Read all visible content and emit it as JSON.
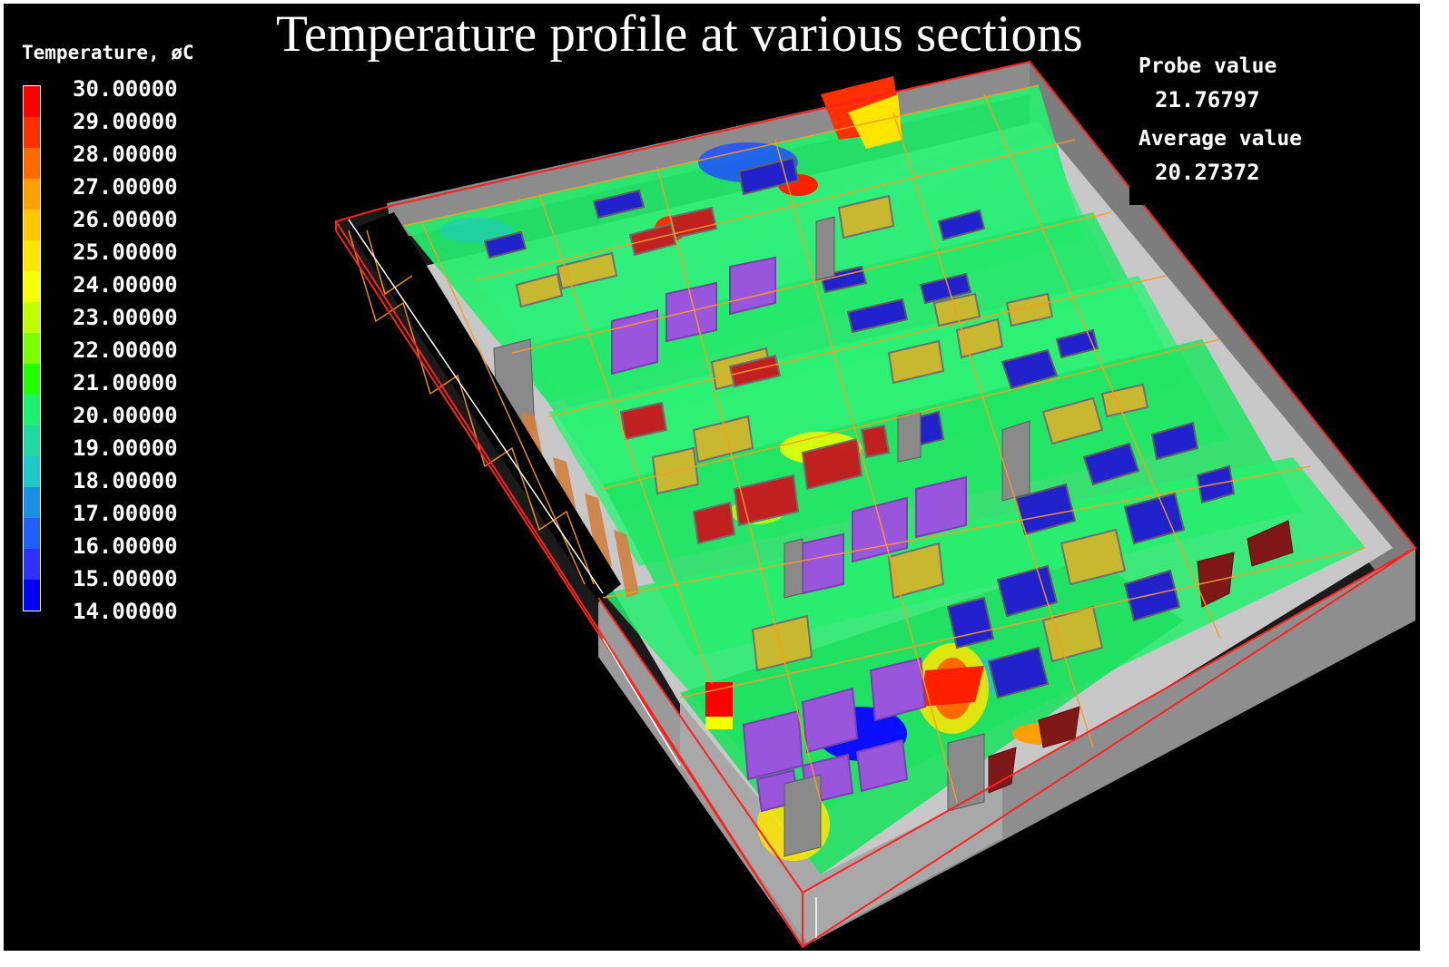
{
  "title": "Temperature profile at various sections",
  "legend": {
    "title": "Temperature, øC",
    "ticks": [
      "30.00000",
      "29.00000",
      "28.00000",
      "27.00000",
      "26.00000",
      "25.00000",
      "24.00000",
      "23.00000",
      "22.00000",
      "21.00000",
      "20.00000",
      "19.00000",
      "18.00000",
      "17.00000",
      "16.00000",
      "15.00000",
      "14.00000"
    ],
    "colors": [
      "#ff0000",
      "#ff3000",
      "#ff6a00",
      "#ffa000",
      "#ffc800",
      "#ffe600",
      "#f6ff00",
      "#c0ff00",
      "#7aff00",
      "#22ff00",
      "#20f070",
      "#22d8a0",
      "#20c8c8",
      "#1890e6",
      "#2060ff",
      "#3030ff",
      "#0000ff"
    ]
  },
  "readout": {
    "probe_label": "Probe value",
    "probe_value": "21.76797",
    "average_label": "Average value",
    "average_value": "20.27372"
  },
  "scene_colors": {
    "background": "#000000",
    "wall": "#8c8c8c",
    "floor": "#c8c8c8",
    "section": "#22ee66",
    "outline": "#ff2020",
    "grid": "#ff9a20",
    "rack_blue": "#2222cc",
    "rack_yellow": "#c8b830",
    "rack_red": "#c02020",
    "rack_purple": "#9a55dd",
    "crac": "#801818"
  }
}
